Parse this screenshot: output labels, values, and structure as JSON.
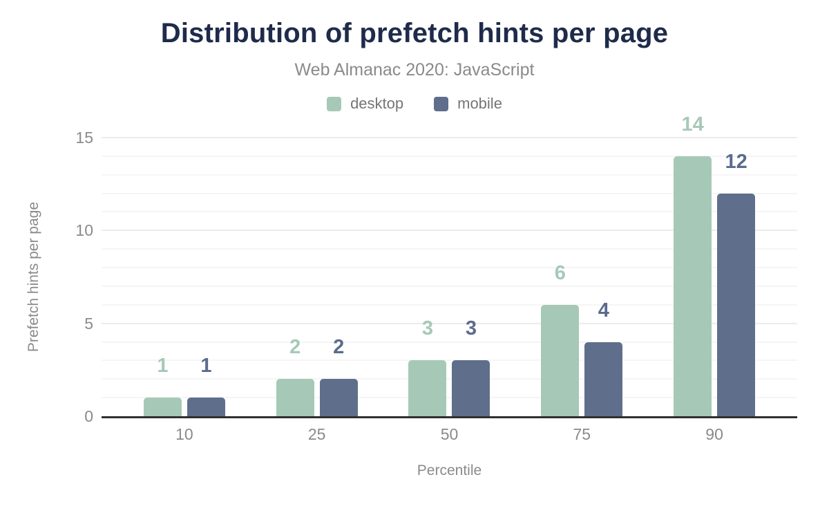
{
  "chart_data": {
    "type": "bar",
    "title": "Distribution of prefetch hints per page",
    "subtitle": "Web Almanac 2020: JavaScript",
    "categories": [
      "10",
      "25",
      "50",
      "75",
      "90"
    ],
    "series": [
      {
        "name": "desktop",
        "color": "#a6c9b7",
        "label_color": "#a6c9b7",
        "values": [
          1,
          2,
          3,
          6,
          14
        ]
      },
      {
        "name": "mobile",
        "color": "#5f6e8b",
        "label_color": "#5a6b8e",
        "values": [
          1,
          2,
          3,
          4,
          12
        ]
      }
    ],
    "xlabel": "Percentile",
    "ylabel": "Prefetch hints per page",
    "ylim": [
      0,
      15
    ],
    "yticks": [
      0,
      5,
      10,
      15
    ],
    "grid": {
      "minor_step": 1,
      "major_step": 5
    },
    "legend_position": "top",
    "data_labels": true
  },
  "colors": {
    "title_text": "#1e2b4a",
    "subtitle_text": "#8a8a8a",
    "axis_text": "#8a8a8a",
    "legend_text": "#757575",
    "axis_line": "#2f2f2f",
    "grid_minor": "#f5f5f5",
    "grid_major": "#ececec",
    "background": "#ffffff"
  }
}
